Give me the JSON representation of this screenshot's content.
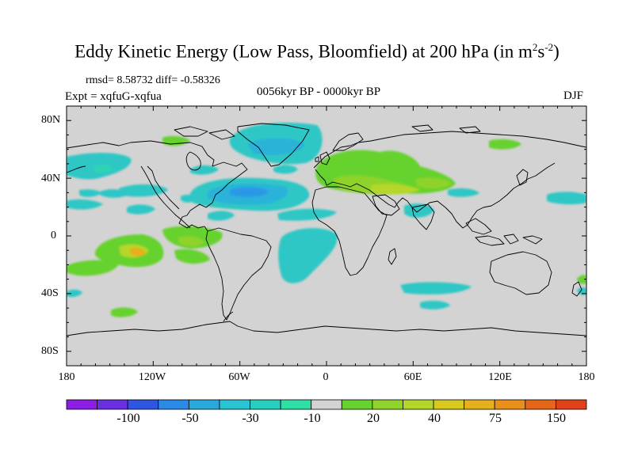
{
  "title": {
    "main": "Eddy Kinetic Energy (Low Pass, Bloomfield) at 200 hPa (in m",
    "sup1": "2",
    "mid": "s",
    "sup2": "-2",
    "end": ")"
  },
  "stats": "rmsd= 8.58732 diff= -0.58326",
  "period": "0056kyr BP - 0000kyr BP",
  "experiment": "Expt = xqfuG-xqfua",
  "season": "DJF",
  "lat_labels": [
    "80N",
    "40N",
    "0",
    "40S",
    "80S"
  ],
  "lon_labels": [
    "180",
    "120W",
    "60W",
    "0",
    "60E",
    "120E",
    "180"
  ],
  "colorbar": {
    "labels": [
      "-100",
      "-50",
      "-30",
      "-10",
      "20",
      "40",
      "75",
      "150"
    ],
    "colors": [
      "#8c1ee6",
      "#6b2fe2",
      "#2f55e3",
      "#2b8ae8",
      "#29a8dd",
      "#2ac3d3",
      "#27cfbf",
      "#2ee0a8",
      "#d3d3d3",
      "#66d22d",
      "#8fd32b",
      "#b5d629",
      "#d7c91f",
      "#e4b01c",
      "#e8901a",
      "#e66617",
      "#e0401a"
    ]
  },
  "chart_data": {
    "type": "heatmap",
    "title": "Eddy Kinetic Energy (Low Pass, Bloomfield) at 200 hPa (in m2s-2)",
    "subtitle": "0056kyr BP - 0000kyr BP",
    "season": "DJF",
    "experiment": "xqfuG-xqfua",
    "rmsd": 8.58732,
    "diff": -0.58326,
    "xlim": [
      -180,
      180
    ],
    "ylim": [
      -90,
      90
    ],
    "levels": [
      -100,
      -50,
      -30,
      -10,
      20,
      40,
      75,
      150
    ],
    "anomalies": [
      {
        "region": "Greenland / N Atlantic",
        "lon": -45,
        "lat": 68,
        "sign": "negative",
        "range": [
          -30,
          -10
        ]
      },
      {
        "region": "Western North Atlantic",
        "lon": -62,
        "lat": 30,
        "sign": "negative",
        "range": [
          -50,
          -30
        ]
      },
      {
        "region": "Mediterranean / Middle East",
        "lon": 45,
        "lat": 35,
        "sign": "positive",
        "range": [
          20,
          40
        ]
      },
      {
        "region": "Central Asia",
        "lon": 80,
        "lat": 30,
        "sign": "positive",
        "range": [
          20,
          40
        ]
      },
      {
        "region": "Tropical E Pacific",
        "lon": -128,
        "lat": -14,
        "sign": "positive",
        "range": [
          40,
          75
        ]
      },
      {
        "region": "Tropical S Atlantic",
        "lon": -15,
        "lat": -15,
        "sign": "negative",
        "range": [
          -30,
          -10
        ]
      },
      {
        "region": "N Pacific",
        "lon": -160,
        "lat": 42,
        "sign": "negative",
        "range": [
          -30,
          -10
        ]
      }
    ]
  }
}
